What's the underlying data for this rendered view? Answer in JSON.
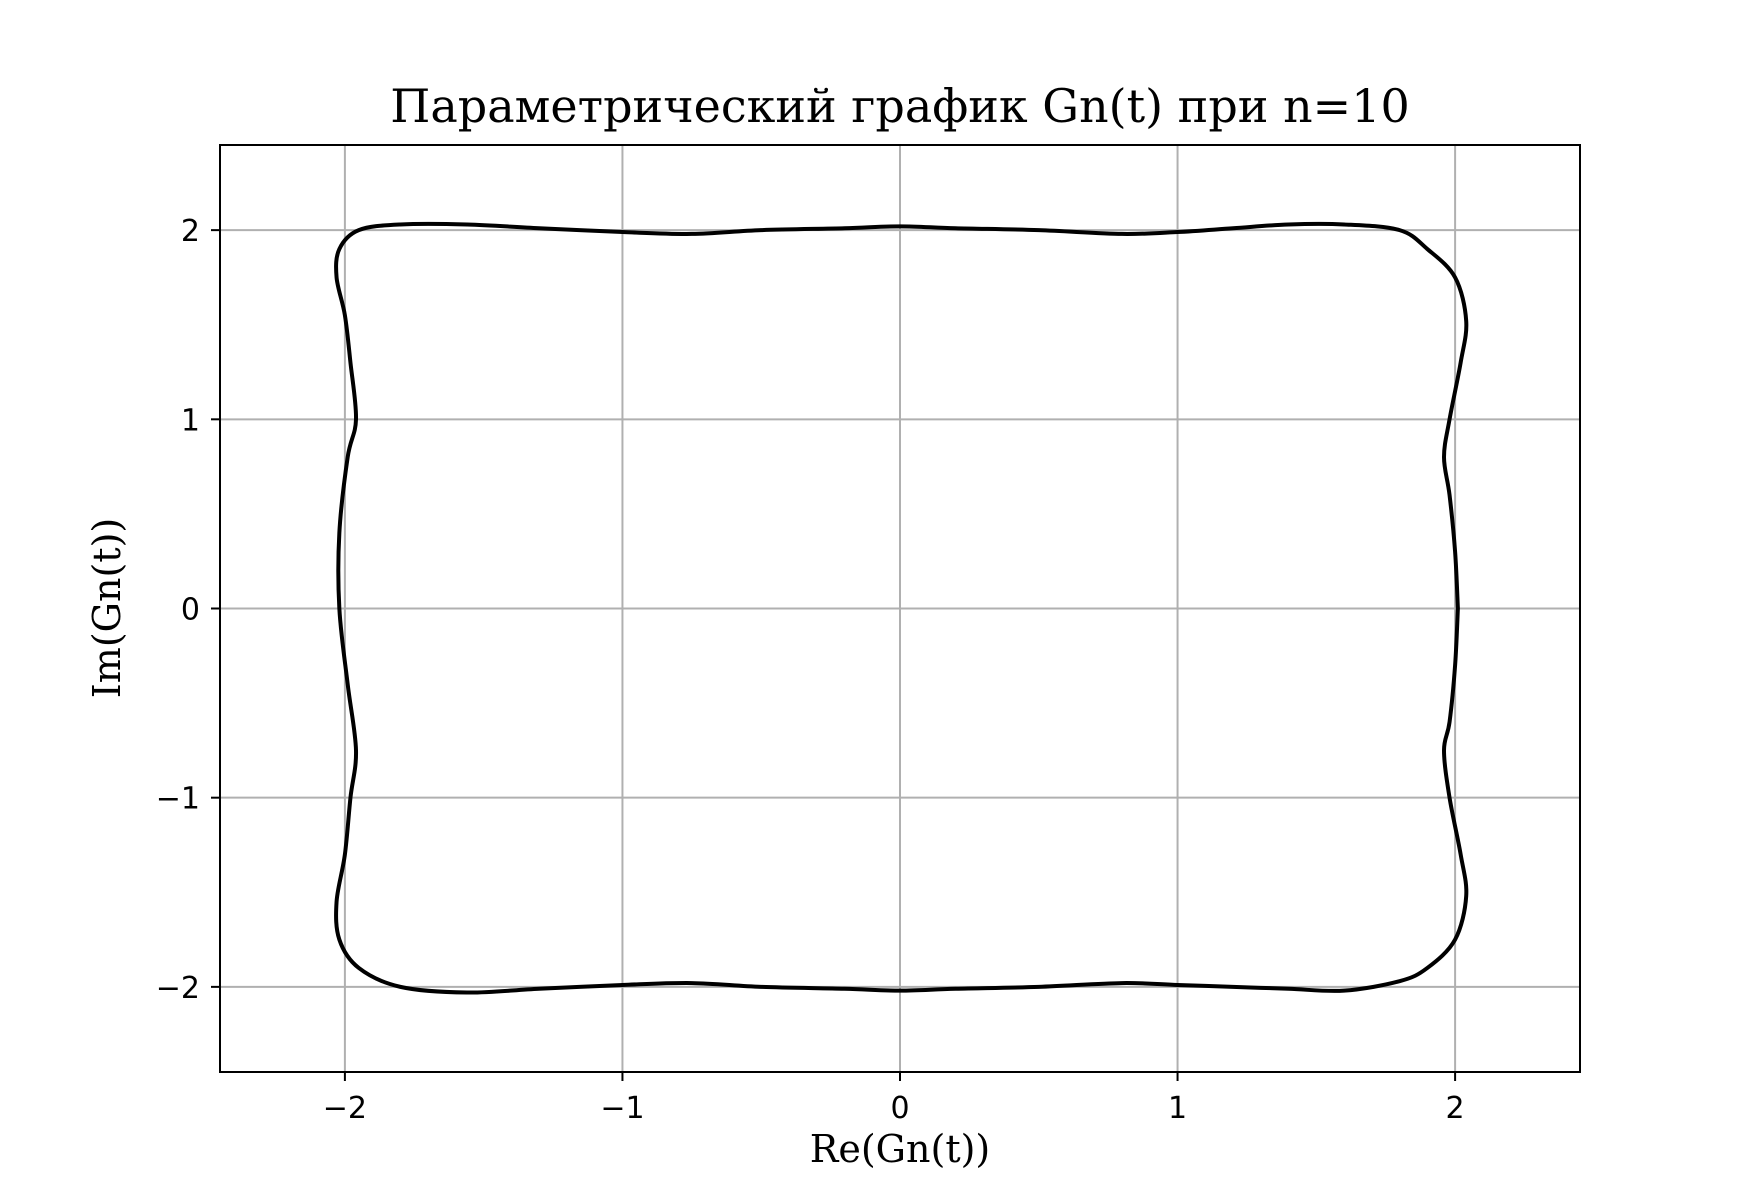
{
  "chart_data": {
    "type": "line",
    "title": "Параметрический график Gn(t) при n=10",
    "xlabel": "Re(Gn(t))",
    "ylabel": "Im(Gn(t))",
    "xlim": [
      -2.45,
      2.45
    ],
    "ylim": [
      -2.45,
      2.45
    ],
    "grid": true,
    "xticks": [
      -2,
      -1,
      0,
      1,
      2
    ],
    "yticks": [
      -2,
      -1,
      0,
      1,
      2
    ],
    "xtick_labels": [
      "−2",
      "−1",
      "0",
      "1",
      "2"
    ],
    "ytick_labels": [
      "−2",
      "−1",
      "0",
      "1",
      "2"
    ],
    "series": [
      {
        "color": "#000000",
        "x": [
          2.01,
          2.0,
          1.98,
          1.96,
          1.98,
          2.02,
          2.04,
          2.0,
          1.9,
          1.8,
          1.6,
          1.4,
          1.2,
          1.0,
          0.8,
          0.5,
          0.2,
          0.0,
          -0.2,
          -0.5,
          -0.75,
          -1.0,
          -1.3,
          -1.56,
          -1.8,
          -1.95,
          -2.02,
          -2.03,
          -2.0,
          -1.98,
          -1.96,
          -1.99,
          -2.02,
          -2.02,
          -1.99,
          -1.96,
          -1.98,
          -2.0,
          -2.03,
          -2.02,
          -1.95,
          -1.8,
          -1.56,
          -1.3,
          -1.0,
          -0.75,
          -0.5,
          -0.2,
          0.0,
          0.2,
          0.5,
          0.8,
          1.0,
          1.2,
          1.4,
          1.6,
          1.8,
          1.9,
          2.0,
          2.04,
          2.02,
          1.98,
          1.96,
          1.98,
          2.0,
          2.01
        ],
        "y": [
          0.0,
          -0.3,
          -0.6,
          -0.75,
          -1.0,
          -1.3,
          -1.52,
          -1.75,
          -1.9,
          -1.97,
          -2.02,
          -2.01,
          -2.0,
          -1.99,
          -1.98,
          -2.0,
          -2.01,
          -2.02,
          -2.01,
          -2.0,
          -1.98,
          -1.99,
          -2.01,
          -2.03,
          -2.0,
          -1.9,
          -1.75,
          -1.55,
          -1.3,
          -1.0,
          -0.75,
          -0.4,
          0.0,
          0.4,
          0.8,
          1.0,
          1.3,
          1.55,
          1.75,
          1.9,
          2.0,
          2.03,
          2.03,
          2.01,
          1.99,
          1.98,
          2.0,
          2.01,
          2.02,
          2.01,
          2.0,
          1.98,
          1.99,
          2.01,
          2.03,
          2.03,
          2.0,
          1.9,
          1.75,
          1.52,
          1.3,
          1.0,
          0.8,
          0.6,
          0.3,
          0.0
        ]
      }
    ]
  }
}
